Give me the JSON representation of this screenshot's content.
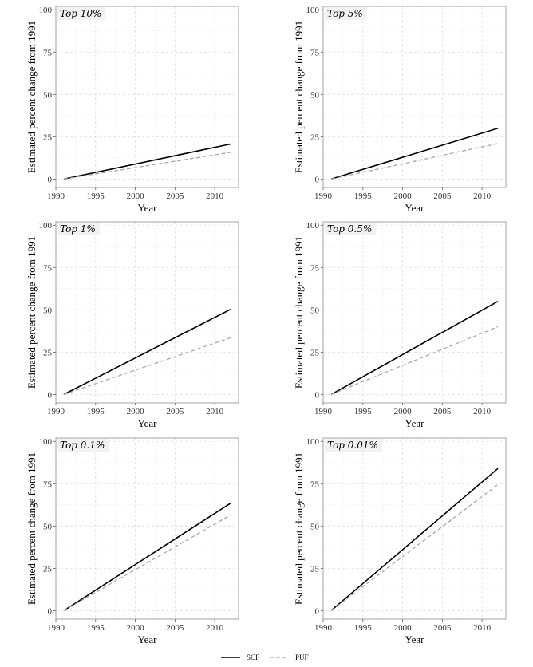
{
  "legend": [
    {
      "name": "SCF",
      "color": "#000000",
      "dash": "solid"
    },
    {
      "name": "PUF",
      "color": "#a8a8a8",
      "dash": "dashed"
    }
  ],
  "chart_data": [
    {
      "type": "line",
      "title": "Top 10%",
      "xlabel": "Year",
      "ylabel": "Estimated percent change from 1991",
      "xlim": [
        1990,
        2013
      ],
      "ylim": [
        -5,
        102
      ],
      "xticks": [
        1990,
        1995,
        2000,
        2005,
        2010
      ],
      "yticks": [
        0,
        25,
        50,
        75,
        100
      ],
      "grid": true,
      "series": [
        {
          "name": "SCF",
          "x": [
            1991,
            2012
          ],
          "y": [
            0,
            20.7
          ]
        },
        {
          "name": "PUF",
          "x": [
            1991,
            2012
          ],
          "y": [
            0,
            15.8
          ]
        }
      ]
    },
    {
      "type": "line",
      "title": "Top 5%",
      "xlabel": "Year",
      "ylabel": "Estimated percent change from 1991",
      "xlim": [
        1990,
        2013
      ],
      "ylim": [
        -5,
        102
      ],
      "xticks": [
        1990,
        1995,
        2000,
        2005,
        2010
      ],
      "yticks": [
        0,
        25,
        50,
        75,
        100
      ],
      "grid": true,
      "series": [
        {
          "name": "SCF",
          "x": [
            1991,
            2012
          ],
          "y": [
            0,
            30.0
          ]
        },
        {
          "name": "PUF",
          "x": [
            1991,
            2012
          ],
          "y": [
            0,
            21.0
          ]
        }
      ]
    },
    {
      "type": "line",
      "title": "Top 1%",
      "xlabel": "Year",
      "ylabel": "Estimated percent change from 1991",
      "xlim": [
        1990,
        2013
      ],
      "ylim": [
        -5,
        102
      ],
      "xticks": [
        1990,
        1995,
        2000,
        2005,
        2010
      ],
      "yticks": [
        0,
        25,
        50,
        75,
        100
      ],
      "grid": true,
      "series": [
        {
          "name": "SCF",
          "x": [
            1991,
            2012
          ],
          "y": [
            0,
            50.3
          ]
        },
        {
          "name": "PUF",
          "x": [
            1991,
            2012
          ],
          "y": [
            0,
            33.5
          ]
        }
      ]
    },
    {
      "type": "line",
      "title": "Top 0.5%",
      "xlabel": "Year",
      "ylabel": "Estimated percent change from 1991",
      "xlim": [
        1990,
        2013
      ],
      "ylim": [
        -5,
        102
      ],
      "xticks": [
        1990,
        1995,
        2000,
        2005,
        2010
      ],
      "yticks": [
        0,
        25,
        50,
        75,
        100
      ],
      "grid": true,
      "series": [
        {
          "name": "SCF",
          "x": [
            1991,
            2012
          ],
          "y": [
            0,
            55.0
          ]
        },
        {
          "name": "PUF",
          "x": [
            1991,
            2012
          ],
          "y": [
            0,
            40.0
          ]
        }
      ]
    },
    {
      "type": "line",
      "title": "Top 0.1%",
      "xlabel": "Year",
      "ylabel": "Estimated percent change from 1991",
      "xlim": [
        1990,
        2013
      ],
      "ylim": [
        -5,
        102
      ],
      "xticks": [
        1990,
        1995,
        2000,
        2005,
        2010
      ],
      "yticks": [
        0,
        25,
        50,
        75,
        100
      ],
      "grid": true,
      "series": [
        {
          "name": "SCF",
          "x": [
            1991,
            2012
          ],
          "y": [
            0,
            63.5
          ]
        },
        {
          "name": "PUF",
          "x": [
            1991,
            2012
          ],
          "y": [
            0,
            56.5
          ]
        }
      ]
    },
    {
      "type": "line",
      "title": "Top 0.01%",
      "xlabel": "Year",
      "ylabel": "Estimated percent change from 1991",
      "xlim": [
        1990,
        2013
      ],
      "ylim": [
        -5,
        102
      ],
      "xticks": [
        1990,
        1995,
        2000,
        2005,
        2010
      ],
      "yticks": [
        0,
        25,
        50,
        75,
        100
      ],
      "grid": true,
      "series": [
        {
          "name": "SCF",
          "x": [
            1991,
            2012
          ],
          "y": [
            0,
            84.0
          ]
        },
        {
          "name": "PUF",
          "x": [
            1991,
            2012
          ],
          "y": [
            0,
            74.5
          ]
        }
      ]
    }
  ]
}
